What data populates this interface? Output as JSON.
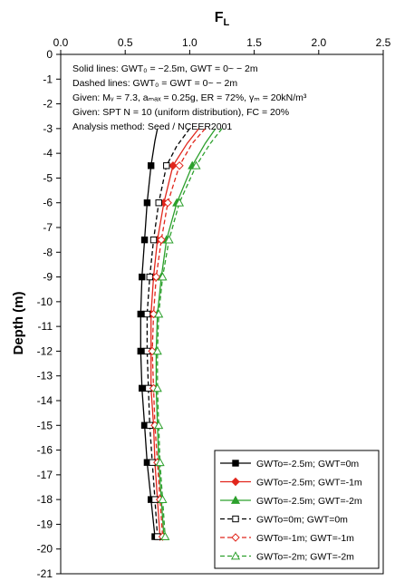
{
  "chart_data": {
    "type": "line",
    "xlabel": "F",
    "xlabel_sub": "L",
    "ylabel": "Depth (m)",
    "xlim": [
      0,
      2.5
    ],
    "ylim": [
      0,
      -21
    ],
    "xticks": [
      "0.0",
      "0.5",
      "1.0",
      "1.5",
      "2.0",
      "2.5"
    ],
    "yticks": [
      "0",
      "-1",
      "-2",
      "-3",
      "-4",
      "-5",
      "-6",
      "-7",
      "-8",
      "-9",
      "-10",
      "-11",
      "-12",
      "-13",
      "-14",
      "-15",
      "-16",
      "-17",
      "-18",
      "-19",
      "-20",
      "-21"
    ],
    "grid": false,
    "legend_position": "bottom-right",
    "annotations": [
      "Solid lines: GWT₀ = −2.5m, GWT = 0~ − 2m",
      "Dashed lines: GWT₀ = GWT = 0~ − 2m",
      "Given: Mᵥ = 7.3, aₘₐₓ = 0.25g, ER = 72%, γₘ = 20kN/m³",
      "Given: SPT N = 10 (uniform distribution), FC = 20%",
      "Analysis method: Seed / NCEER2001"
    ],
    "series": [
      {
        "name": "GWTo=-2.5m; GWT=0m",
        "color": "#000000",
        "dash": "solid",
        "marker": "square",
        "curve": [
          [
            0.75,
            -3.0
          ],
          [
            0.73,
            -3.5
          ],
          [
            0.7,
            -4.5
          ],
          [
            0.67,
            -6.0
          ],
          [
            0.65,
            -7.5
          ],
          [
            0.63,
            -9.0
          ],
          [
            0.62,
            -10.5
          ],
          [
            0.62,
            -12.0
          ],
          [
            0.63,
            -13.5
          ],
          [
            0.65,
            -15.0
          ],
          [
            0.67,
            -16.5
          ],
          [
            0.7,
            -18.0
          ],
          [
            0.73,
            -19.5
          ]
        ],
        "markers": [
          [
            0.7,
            -4.5
          ],
          [
            0.67,
            -6.0
          ],
          [
            0.65,
            -7.5
          ],
          [
            0.63,
            -9.0
          ],
          [
            0.62,
            -10.5
          ],
          [
            0.62,
            -12.0
          ],
          [
            0.63,
            -13.5
          ],
          [
            0.65,
            -15.0
          ],
          [
            0.67,
            -16.5
          ],
          [
            0.7,
            -18.0
          ],
          [
            0.73,
            -19.5
          ]
        ]
      },
      {
        "name": "GWTo=-2.5m; GWT=-1m",
        "color": "#e1261c",
        "dash": "solid",
        "marker": "diamond",
        "curve": [
          [
            1.07,
            -3.0
          ],
          [
            0.98,
            -3.6
          ],
          [
            0.87,
            -4.5
          ],
          [
            0.8,
            -6.0
          ],
          [
            0.75,
            -7.5
          ],
          [
            0.72,
            -9.0
          ],
          [
            0.7,
            -10.5
          ],
          [
            0.7,
            -12.0
          ],
          [
            0.7,
            -13.5
          ],
          [
            0.72,
            -15.0
          ],
          [
            0.73,
            -16.5
          ],
          [
            0.75,
            -18.0
          ],
          [
            0.77,
            -19.5
          ]
        ],
        "markers": [
          [
            0.87,
            -4.5
          ],
          [
            0.8,
            -6.0
          ],
          [
            0.75,
            -7.5
          ],
          [
            0.72,
            -9.0
          ],
          [
            0.7,
            -10.5
          ],
          [
            0.7,
            -12.0
          ],
          [
            0.7,
            -13.5
          ],
          [
            0.72,
            -15.0
          ],
          [
            0.73,
            -16.5
          ],
          [
            0.75,
            -18.0
          ],
          [
            0.77,
            -19.5
          ]
        ]
      },
      {
        "name": "GWTo=-2.5m; GWT=-2m",
        "color": "#2ca02c",
        "dash": "solid",
        "marker": "triangle",
        "curve": [
          [
            1.2,
            -3.0
          ],
          [
            1.12,
            -3.6
          ],
          [
            1.02,
            -4.5
          ],
          [
            0.9,
            -6.0
          ],
          [
            0.82,
            -7.5
          ],
          [
            0.78,
            -9.0
          ],
          [
            0.75,
            -10.5
          ],
          [
            0.74,
            -12.0
          ],
          [
            0.74,
            -13.5
          ],
          [
            0.75,
            -15.0
          ],
          [
            0.76,
            -16.5
          ],
          [
            0.78,
            -18.0
          ],
          [
            0.8,
            -19.5
          ]
        ],
        "markers": [
          [
            1.02,
            -4.5
          ],
          [
            0.9,
            -6.0
          ],
          [
            0.82,
            -7.5
          ],
          [
            0.78,
            -9.0
          ],
          [
            0.75,
            -10.5
          ],
          [
            0.74,
            -12.0
          ],
          [
            0.74,
            -13.5
          ],
          [
            0.75,
            -15.0
          ],
          [
            0.76,
            -16.5
          ],
          [
            0.78,
            -18.0
          ],
          [
            0.8,
            -19.5
          ]
        ]
      },
      {
        "name": "GWTo=0m; GWT=0m",
        "color": "#000000",
        "dash": "dashed",
        "marker": "square-open",
        "curve": [
          [
            1.0,
            -3.0
          ],
          [
            0.9,
            -3.7
          ],
          [
            0.82,
            -4.5
          ],
          [
            0.76,
            -6.0
          ],
          [
            0.72,
            -7.5
          ],
          [
            0.69,
            -9.0
          ],
          [
            0.67,
            -10.5
          ],
          [
            0.67,
            -12.0
          ],
          [
            0.68,
            -13.5
          ],
          [
            0.69,
            -15.0
          ],
          [
            0.71,
            -16.5
          ],
          [
            0.73,
            -18.0
          ],
          [
            0.75,
            -19.5
          ]
        ],
        "markers": [
          [
            0.82,
            -4.5
          ],
          [
            0.76,
            -6.0
          ],
          [
            0.72,
            -7.5
          ],
          [
            0.69,
            -9.0
          ],
          [
            0.67,
            -10.5
          ],
          [
            0.67,
            -12.0
          ],
          [
            0.68,
            -13.5
          ],
          [
            0.69,
            -15.0
          ],
          [
            0.71,
            -16.5
          ],
          [
            0.73,
            -18.0
          ],
          [
            0.75,
            -19.5
          ]
        ]
      },
      {
        "name": "GWTo=-1m; GWT=-1m",
        "color": "#e1261c",
        "dash": "dashed",
        "marker": "diamond-open",
        "curve": [
          [
            1.12,
            -3.0
          ],
          [
            1.02,
            -3.6
          ],
          [
            0.92,
            -4.5
          ],
          [
            0.83,
            -6.0
          ],
          [
            0.78,
            -7.5
          ],
          [
            0.74,
            -9.0
          ],
          [
            0.72,
            -10.5
          ],
          [
            0.71,
            -12.0
          ],
          [
            0.72,
            -13.5
          ],
          [
            0.73,
            -15.0
          ],
          [
            0.75,
            -16.5
          ],
          [
            0.77,
            -18.0
          ],
          [
            0.79,
            -19.5
          ]
        ],
        "markers": [
          [
            0.92,
            -4.5
          ],
          [
            0.83,
            -6.0
          ],
          [
            0.78,
            -7.5
          ],
          [
            0.74,
            -9.0
          ],
          [
            0.72,
            -10.5
          ],
          [
            0.71,
            -12.0
          ],
          [
            0.72,
            -13.5
          ],
          [
            0.73,
            -15.0
          ],
          [
            0.75,
            -16.5
          ],
          [
            0.77,
            -18.0
          ],
          [
            0.79,
            -19.5
          ]
        ]
      },
      {
        "name": "GWTo=-2m; GWT=-2m",
        "color": "#2ca02c",
        "dash": "dashed",
        "marker": "triangle-open",
        "curve": [
          [
            1.25,
            -3.0
          ],
          [
            1.16,
            -3.6
          ],
          [
            1.05,
            -4.5
          ],
          [
            0.92,
            -6.0
          ],
          [
            0.84,
            -7.5
          ],
          [
            0.79,
            -9.0
          ],
          [
            0.76,
            -10.5
          ],
          [
            0.75,
            -12.0
          ],
          [
            0.75,
            -13.5
          ],
          [
            0.76,
            -15.0
          ],
          [
            0.77,
            -16.5
          ],
          [
            0.79,
            -18.0
          ],
          [
            0.81,
            -19.5
          ]
        ],
        "markers": [
          [
            1.05,
            -4.5
          ],
          [
            0.92,
            -6.0
          ],
          [
            0.84,
            -7.5
          ],
          [
            0.79,
            -9.0
          ],
          [
            0.76,
            -10.5
          ],
          [
            0.75,
            -12.0
          ],
          [
            0.75,
            -13.5
          ],
          [
            0.76,
            -15.0
          ],
          [
            0.77,
            -16.5
          ],
          [
            0.79,
            -18.0
          ],
          [
            0.81,
            -19.5
          ]
        ]
      }
    ]
  }
}
